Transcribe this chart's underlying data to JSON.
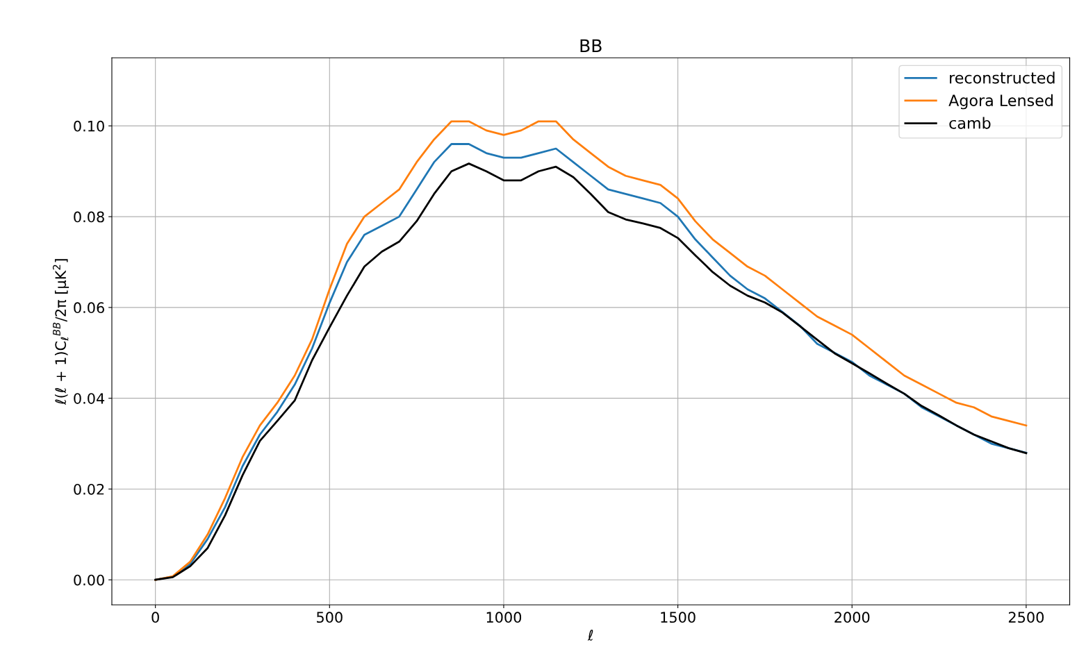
{
  "chart_data": {
    "type": "line",
    "title": "BB",
    "xlabel": "ℓ",
    "ylabel": "ℓ(ℓ + 1)C$_{ℓ}$$^{BB}$/2π [μK$^{2}$]",
    "x": [
      0,
      50,
      100,
      150,
      200,
      250,
      300,
      350,
      400,
      450,
      500,
      550,
      600,
      650,
      700,
      750,
      800,
      850,
      900,
      950,
      1000,
      1050,
      1100,
      1150,
      1200,
      1250,
      1300,
      1350,
      1400,
      1450,
      1500,
      1550,
      1600,
      1650,
      1700,
      1750,
      1800,
      1850,
      1900,
      1950,
      2000,
      2050,
      2100,
      2150,
      2200,
      2250,
      2300,
      2350,
      2400,
      2450,
      2500
    ],
    "series": [
      {
        "name": "reconstructed",
        "color": "#1f77b4",
        "values": [
          0,
          0.0007,
          0.0035,
          0.009,
          0.016,
          0.025,
          0.032,
          0.037,
          0.043,
          0.051,
          0.061,
          0.07,
          0.076,
          0.078,
          0.08,
          0.086,
          0.092,
          0.096,
          0.096,
          0.094,
          0.093,
          0.093,
          0.094,
          0.095,
          0.092,
          0.089,
          0.086,
          0.085,
          0.084,
          0.083,
          0.08,
          0.075,
          0.071,
          0.067,
          0.064,
          0.062,
          0.059,
          0.056,
          0.052,
          0.05,
          0.048,
          0.045,
          0.043,
          0.041,
          0.038,
          0.036,
          0.034,
          0.032,
          0.03,
          0.029,
          0.028
        ]
      },
      {
        "name": "Agora Lensed",
        "color": "#ff7f0e",
        "values": [
          0,
          0.0008,
          0.004,
          0.01,
          0.018,
          0.027,
          0.034,
          0.039,
          0.045,
          0.053,
          0.064,
          0.074,
          0.08,
          0.083,
          0.086,
          0.092,
          0.097,
          0.101,
          0.101,
          0.099,
          0.098,
          0.099,
          0.101,
          0.101,
          0.097,
          0.094,
          0.091,
          0.089,
          0.088,
          0.087,
          0.084,
          0.079,
          0.075,
          0.072,
          0.069,
          0.067,
          0.064,
          0.061,
          0.058,
          0.056,
          0.054,
          0.051,
          0.048,
          0.045,
          0.043,
          0.041,
          0.039,
          0.038,
          0.036,
          0.035,
          0.034
        ]
      },
      {
        "name": "camb",
        "color": "#000000",
        "values": [
          0,
          0.0006,
          0.003,
          0.007,
          0.0142,
          0.023,
          0.0306,
          0.035,
          0.0395,
          0.0484,
          0.0556,
          0.0626,
          0.069,
          0.0723,
          0.0745,
          0.079,
          0.085,
          0.09,
          0.0917,
          0.09,
          0.088,
          0.088,
          0.09,
          0.091,
          0.0887,
          0.085,
          0.081,
          0.0794,
          0.0785,
          0.0775,
          0.0753,
          0.0715,
          0.0678,
          0.0648,
          0.0626,
          0.0611,
          0.0589,
          0.0559,
          0.0529,
          0.0499,
          0.0477,
          0.0455,
          0.0432,
          0.041,
          0.0383,
          0.0362,
          0.034,
          0.032,
          0.0305,
          0.029,
          0.0279
        ]
      }
    ],
    "xlim": [
      -125,
      2625
    ],
    "ylim": [
      -0.0055,
      0.115
    ],
    "xticks": [
      0,
      500,
      1000,
      1500,
      2000,
      2500
    ],
    "yticks": [
      {
        "value": 0,
        "label": "0.00"
      },
      {
        "value": 0.02,
        "label": "0.02"
      },
      {
        "value": 0.04,
        "label": "0.04"
      },
      {
        "value": 0.06,
        "label": "0.06"
      },
      {
        "value": 0.08,
        "label": "0.08"
      },
      {
        "value": 0.1,
        "label": "0.10"
      }
    ],
    "grid": true,
    "legend": "top right",
    "line_style": "solid",
    "marker": "none"
  }
}
